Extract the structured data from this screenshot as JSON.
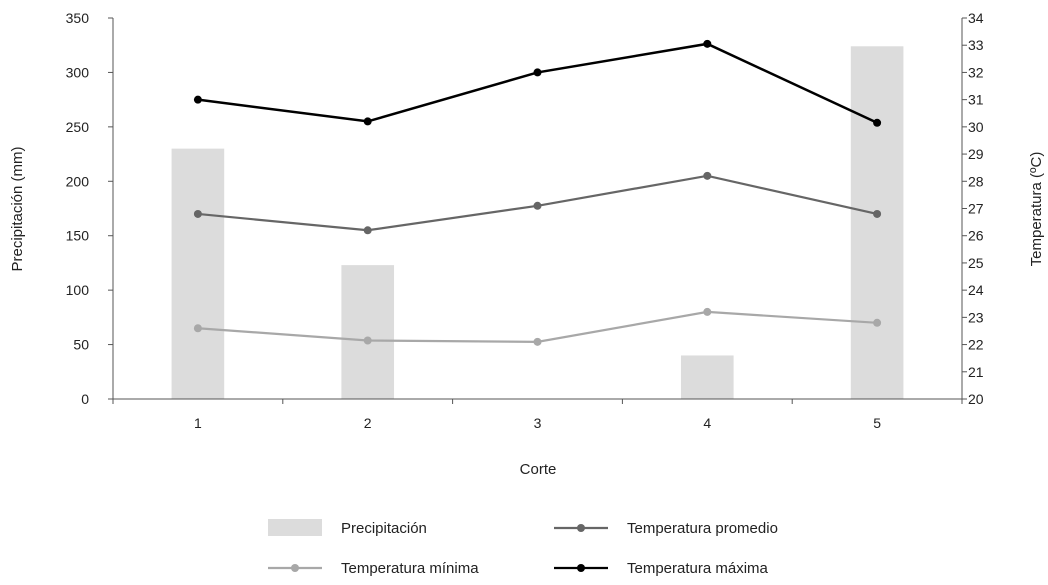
{
  "chart_data": {
    "type": "bar",
    "xlabel": "Corte",
    "ylabel_left": "Precipitación (mm)",
    "ylabel_right": "Temperatura (ºC)",
    "categories": [
      "1",
      "2",
      "3",
      "4",
      "5"
    ],
    "y_left": {
      "min": 0,
      "max": 350,
      "ticks": [
        "0",
        "50",
        "100",
        "150",
        "200",
        "250",
        "300",
        "350"
      ]
    },
    "y_right": {
      "min": 20,
      "max": 34,
      "ticks": [
        "20",
        "21",
        "22",
        "23",
        "24",
        "25",
        "26",
        "27",
        "28",
        "29",
        "30",
        "31",
        "32",
        "33",
        "34"
      ]
    },
    "grid": false,
    "legend_position": "bottom",
    "series": [
      {
        "name": "Precipitación",
        "type": "bar",
        "axis": "left",
        "color": "#dcdcdc",
        "values": [
          230,
          123,
          0,
          40,
          324
        ]
      },
      {
        "name": "Temperatura promedio",
        "type": "line",
        "axis": "right",
        "color": "#666666",
        "values": [
          26.8,
          26.2,
          27.1,
          28.2,
          26.8
        ]
      },
      {
        "name": "Temperatura mínima",
        "type": "line",
        "axis": "right",
        "color": "#a8a8a8",
        "values": [
          22.6,
          22.15,
          22.1,
          23.2,
          22.8
        ]
      },
      {
        "name": "Temperatura máxima",
        "type": "line",
        "axis": "right",
        "color": "#000000",
        "values": [
          31.0,
          30.2,
          32.0,
          33.05,
          30.15
        ]
      }
    ],
    "legend": [
      {
        "label": "Precipitación",
        "series": 0
      },
      {
        "label": "Temperatura promedio",
        "series": 1
      },
      {
        "label": "Temperatura mínima",
        "series": 2
      },
      {
        "label": "Temperatura máxima",
        "series": 3
      }
    ]
  }
}
